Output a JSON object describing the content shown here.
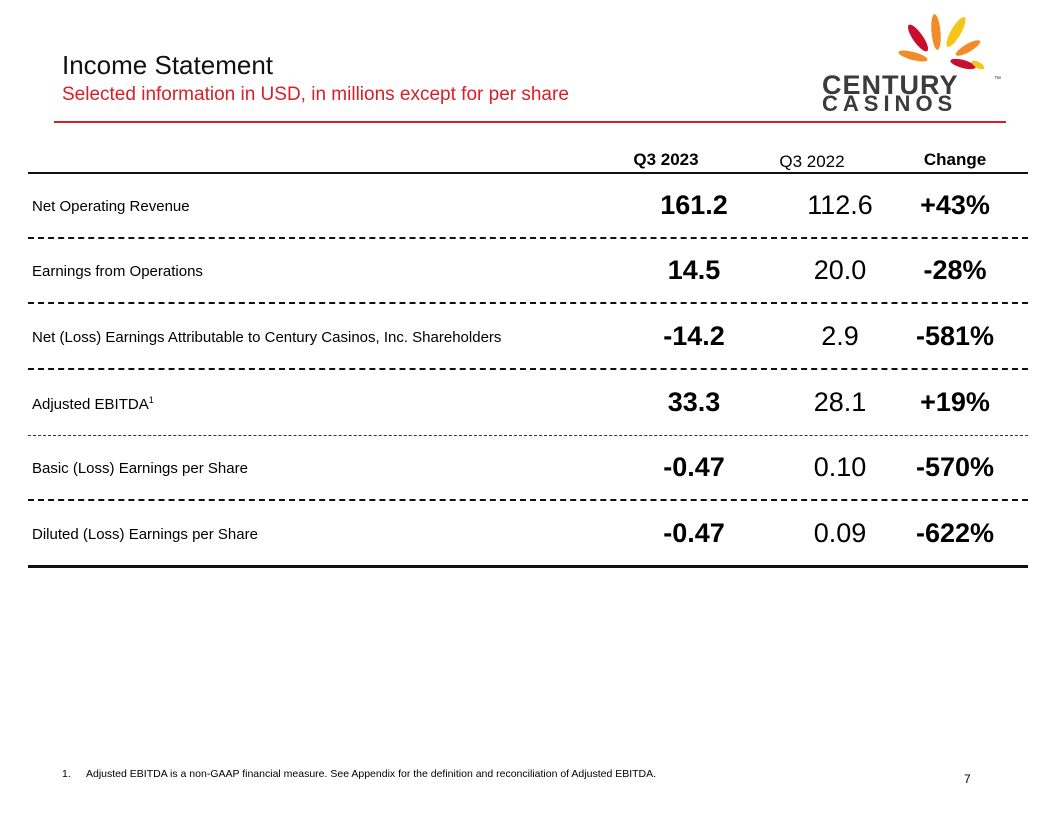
{
  "header": {
    "title": "Income Statement",
    "subtitle": "Selected information in USD, in millions except for per share"
  },
  "logo": {
    "line1": "CENTURY",
    "line2": "CASINOS",
    "tm": "™",
    "colors": {
      "red": "#c8102e",
      "orange": "#f28c28",
      "yellow": "#f5c518",
      "text": "#3b3b3b"
    }
  },
  "table": {
    "columns": [
      "Q3 2023",
      "Q3 2022",
      "Change"
    ],
    "rows": [
      {
        "label": "Net Operating Revenue",
        "q3_2023": "161.2",
        "q3_2022": "112.6",
        "change": "+43%"
      },
      {
        "label": "Earnings from Operations",
        "q3_2023": "14.5",
        "q3_2022": "20.0",
        "change": "-28%"
      },
      {
        "label": "Net (Loss) Earnings Attributable to Century Casinos, Inc. Shareholders",
        "q3_2023": "-14.2",
        "q3_2022": "2.9",
        "change": "-581%"
      },
      {
        "label": "Adjusted EBITDA",
        "footnote_ref": "1",
        "q3_2023": "33.3",
        "q3_2022": "28.1",
        "change": "+19%"
      },
      {
        "label": "Basic (Loss) Earnings per Share",
        "q3_2023": "-0.47",
        "q3_2022": "0.10",
        "change": "-570%"
      },
      {
        "label": "Diluted (Loss) Earnings per Share",
        "q3_2023": "-0.47",
        "q3_2022": "0.09",
        "change": "-622%"
      }
    ]
  },
  "footnote": {
    "number": "1.",
    "text": "Adjusted EBITDA is a non-GAAP financial measure. See Appendix for the definition and reconciliation of Adjusted EBITDA."
  },
  "page_number": "7",
  "accent_color": "#d6202a"
}
